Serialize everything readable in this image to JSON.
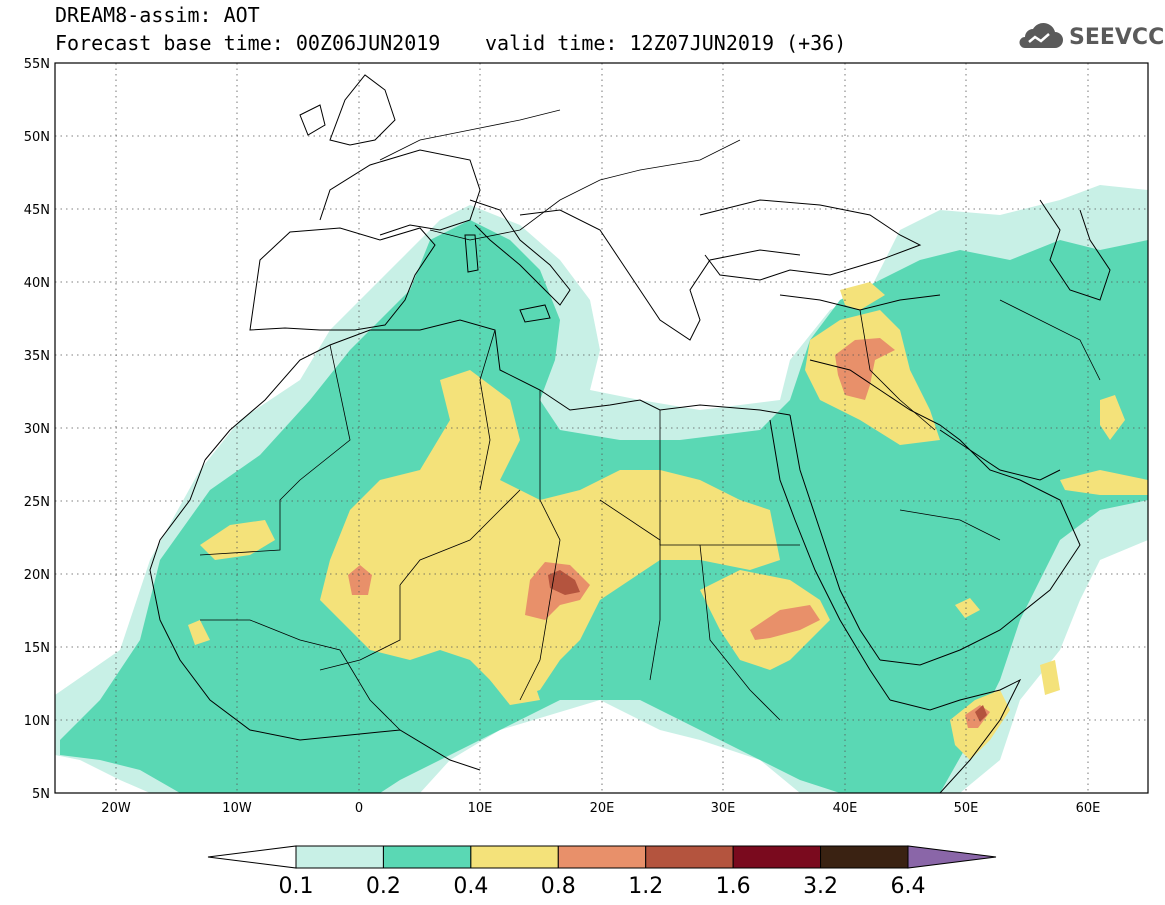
{
  "header": {
    "title_line1": "DREAM8-assim: AOT",
    "title_line2": "Forecast base time: 00Z06JUN2019",
    "valid_time": "valid time: 12Z07JUN2019 (+36)",
    "logo_text": "SEEVCCC",
    "logo_icon": "cloud-icon"
  },
  "map": {
    "lon_range": [
      -25,
      65
    ],
    "lat_range": [
      5,
      55
    ],
    "lat_ticks": [
      "55N",
      "50N",
      "45N",
      "40N",
      "35N",
      "30N",
      "25N",
      "20N",
      "15N",
      "10N",
      "5N"
    ],
    "lon_ticks": [
      "20W",
      "10W",
      "0",
      "10E",
      "20E",
      "30E",
      "40E",
      "50E",
      "60E"
    ],
    "lat_values": [
      55,
      50,
      45,
      40,
      35,
      30,
      25,
      20,
      15,
      10,
      5
    ],
    "lon_values": [
      -20,
      -10,
      0,
      10,
      20,
      30,
      40,
      50,
      60
    ],
    "gridlines": "dotted"
  },
  "colorbar": {
    "labels": [
      "0.1",
      "0.2",
      "0.4",
      "0.8",
      "1.2",
      "1.6",
      "3.2",
      "6.4"
    ],
    "colors": [
      "#c8f0e6",
      "#5ad8b4",
      "#f4e27a",
      "#e8906a",
      "#b4543e",
      "#7a0a1e",
      "#3a2212"
    ],
    "under_color": "#ffffff",
    "over_color": "#8a66a8"
  },
  "colors": {
    "c1": "#c8f0e6",
    "c2": "#5ad8b4",
    "c3": "#f4e27a",
    "c4": "#e8906a",
    "c5": "#b4543e",
    "c6": "#7a0a1e",
    "c7": "#3a2212"
  }
}
